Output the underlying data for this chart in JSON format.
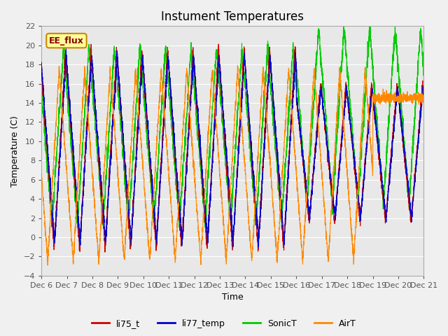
{
  "title": "Instument Temperatures",
  "xlabel": "Time",
  "ylabel": "Temperature (C)",
  "ylim": [
    -4,
    22
  ],
  "yticks": [
    -4,
    -2,
    0,
    2,
    4,
    6,
    8,
    10,
    12,
    14,
    16,
    18,
    20,
    22
  ],
  "xtick_labels": [
    "Dec 6",
    "Dec 7",
    "Dec 8",
    "Dec 9",
    "Dec 10",
    "Dec 11",
    "Dec 12",
    "Dec 13",
    "Dec 14",
    "Dec 15",
    "Dec 16",
    "Dec 17",
    "Dec 18",
    "Dec 19",
    "Dec 20",
    "Dec 21"
  ],
  "series_colors": {
    "li75_t": "#cc0000",
    "li77_temp": "#0000cc",
    "SonicT": "#00cc00",
    "AirT": "#ff8800"
  },
  "legend_label": "EE_flux",
  "legend_box_color": "#ffff99",
  "legend_box_edge": "#cc8800",
  "legend_text_color": "#880000",
  "plot_bg_color": "#e8e8e8",
  "fig_bg_color": "#f0f0f0",
  "grid_color": "#ffffff",
  "title_fontsize": 12,
  "axis_fontsize": 9,
  "tick_fontsize": 8
}
